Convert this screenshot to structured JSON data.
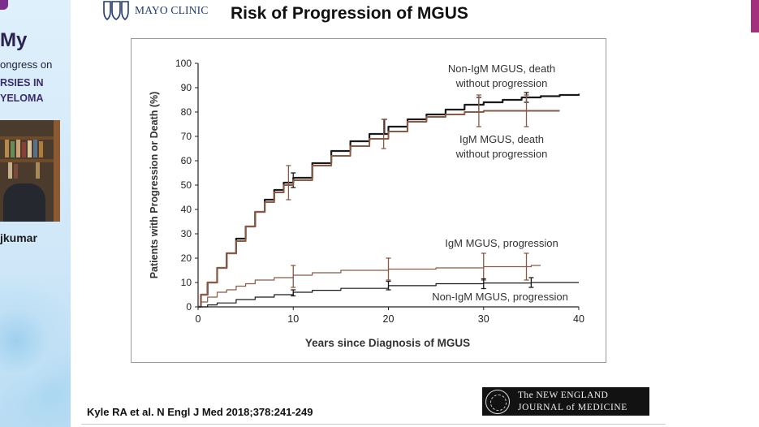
{
  "sidebar": {
    "title": "My",
    "line1": "ongress on",
    "line2": "RSIES IN",
    "line3": "YELOMA",
    "speaker": "jkumar"
  },
  "slide": {
    "logo_text": "MAYO CLINIC",
    "title": "Risk of Progression of MGUS",
    "citation": "Kyle RA et al. N Engl J Med 2018;378:241-249",
    "journal_line1": "The NEW ENGLAND",
    "journal_line2": "JOURNAL of MEDICINE"
  },
  "colors": {
    "non_igm": "#1a1a1a",
    "igm": "#8a5a45",
    "sidebar_accent": "#3a2d6e",
    "right_accent": "#a3307e"
  },
  "chart_data": {
    "type": "line",
    "xlabel": "Years since Diagnosis of MGUS",
    "ylabel": "Patients with Progression or Death (%)",
    "xlim": [
      0,
      40
    ],
    "ylim": [
      0,
      100
    ],
    "x_ticks": [
      "0",
      "10",
      "20",
      "30",
      "40"
    ],
    "y_ticks": [
      "0",
      "10",
      "20",
      "30",
      "40",
      "50",
      "60",
      "70",
      "80",
      "90",
      "100"
    ],
    "grid": false,
    "series": [
      {
        "name": "Non-IgM MGUS, death without progression",
        "color": "#1a1a1a",
        "x": [
          0,
          0.3,
          1,
          2,
          3,
          4,
          5,
          6,
          7,
          8,
          9,
          10,
          12,
          14,
          16,
          18,
          20,
          22,
          24,
          26,
          28,
          30,
          32,
          34,
          36,
          38,
          40
        ],
        "y": [
          0,
          5,
          10,
          16,
          22,
          28,
          33,
          39,
          44,
          48,
          51,
          53,
          59,
          64,
          68,
          71,
          74,
          77,
          79,
          81,
          83,
          84,
          85,
          86,
          86.5,
          87,
          87.5
        ],
        "error_bars": [
          {
            "x": 10,
            "low": 49,
            "high": 55
          },
          {
            "x": 19.6,
            "low": 71,
            "high": 77
          },
          {
            "x": 29.5,
            "low": 80,
            "high": 86
          },
          {
            "x": 34.5,
            "low": 84,
            "high": 88
          }
        ]
      },
      {
        "name": "IgM MGUS, death without progression",
        "color": "#8a5a45",
        "x": [
          0,
          0.3,
          1,
          2,
          3,
          4,
          5,
          6,
          7,
          8,
          9,
          10,
          12,
          14,
          16,
          18,
          20,
          22,
          24,
          26,
          28,
          30,
          32,
          34,
          36,
          38
        ],
        "y": [
          0,
          5,
          10,
          16,
          22,
          27,
          33,
          39,
          43,
          47,
          50,
          52,
          58,
          62,
          66,
          69,
          72,
          76,
          78,
          79,
          80,
          80.5,
          80.5,
          80.5,
          80.5,
          80.5
        ],
        "error_bars": [
          {
            "x": 9.5,
            "low": 44,
            "high": 58
          },
          {
            "x": 19.5,
            "low": 65,
            "high": 77
          },
          {
            "x": 29.5,
            "low": 74,
            "high": 87
          },
          {
            "x": 34.5,
            "low": 74,
            "high": 87
          }
        ]
      },
      {
        "name": "IgM MGUS, progression",
        "color": "#8a5a45",
        "x": [
          0,
          0.3,
          1,
          2,
          3,
          4,
          5,
          6,
          8,
          10,
          12,
          15,
          20,
          25,
          30,
          35,
          36
        ],
        "y": [
          0,
          2,
          4,
          6,
          7,
          8.5,
          9.5,
          11,
          12,
          13,
          14,
          15,
          15.5,
          16,
          16.5,
          17,
          17
        ],
        "error_bars": [
          {
            "x": 10,
            "low": 8,
            "high": 17
          },
          {
            "x": 20,
            "low": 11,
            "high": 20
          },
          {
            "x": 30,
            "low": 11,
            "high": 22
          },
          {
            "x": 34.5,
            "low": 11,
            "high": 22
          }
        ]
      },
      {
        "name": "Non-IgM MGUS, progression",
        "color": "#1a1a1a",
        "x": [
          0,
          1,
          2,
          4,
          6,
          8,
          10,
          12,
          15,
          20,
          25,
          30,
          35,
          40
        ],
        "y": [
          0,
          0.8,
          1.6,
          3,
          4,
          5,
          6,
          6.8,
          7.6,
          8.7,
          9.5,
          9.8,
          10,
          10
        ],
        "error_bars": [
          {
            "x": 10,
            "low": 4.5,
            "high": 7
          },
          {
            "x": 20,
            "low": 7,
            "high": 10.5
          },
          {
            "x": 30,
            "low": 7.5,
            "high": 11.5
          },
          {
            "x": 35,
            "low": 8,
            "high": 12
          }
        ]
      }
    ],
    "annotations": [
      {
        "text": "Non-IgM MGUS, death",
        "series": 0
      },
      {
        "text": "without progression",
        "series": 0
      },
      {
        "text": "IgM MGUS, death",
        "series": 1
      },
      {
        "text": "without progression",
        "series": 1
      },
      {
        "text": "IgM MGUS, progression",
        "series": 2
      },
      {
        "text": "Non-IgM MGUS, progression",
        "series": 3
      }
    ]
  }
}
